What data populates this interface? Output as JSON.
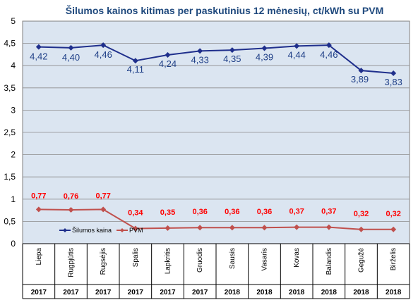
{
  "chart_data": {
    "type": "line",
    "title": "Šilumos kainos kitimas per paskutinius 12 mėnesių, ct/kWh su PVM",
    "categories": [
      "Liepa",
      "Rugpjūtis",
      "Rugsėjis",
      "Spalis",
      "Lapkritis",
      "Gruodis",
      "Sausis",
      "Vasaris",
      "Kovas",
      "Balandis",
      "Gegužė",
      "Birželis"
    ],
    "years": [
      "2017",
      "2017",
      "2017",
      "2017",
      "2017",
      "2017",
      "2018",
      "2018",
      "2018",
      "2018",
      "2018",
      "2018"
    ],
    "ylim": [
      0,
      5
    ],
    "yticks": [
      "0",
      "0,5",
      "1",
      "1,5",
      "2",
      "2,5",
      "3",
      "3,5",
      "4",
      "4,5",
      "5"
    ],
    "grid": true,
    "series": [
      {
        "name": "Šilumos kaina",
        "color": "#1f2f8c",
        "values": [
          4.42,
          4.4,
          4.46,
          4.11,
          4.24,
          4.33,
          4.35,
          4.39,
          4.44,
          4.46,
          3.89,
          3.83
        ],
        "labels": [
          "4,42",
          "4,40",
          "4,46",
          "4,11",
          "4,24",
          "4,33",
          "4,35",
          "4,39",
          "4,44",
          "4,46",
          "3,89",
          "3,83"
        ]
      },
      {
        "name": "PVM",
        "color": "#c0504d",
        "values": [
          0.77,
          0.76,
          0.77,
          0.34,
          0.35,
          0.36,
          0.36,
          0.36,
          0.37,
          0.37,
          0.32,
          0.32
        ],
        "labels": [
          "0,77",
          "0,76",
          "0,77",
          "0,34",
          "0,35",
          "0,36",
          "0,36",
          "0,36",
          "0,37",
          "0,37",
          "0,32",
          "0,32"
        ]
      }
    ],
    "legend": "inside-bottom-left"
  }
}
